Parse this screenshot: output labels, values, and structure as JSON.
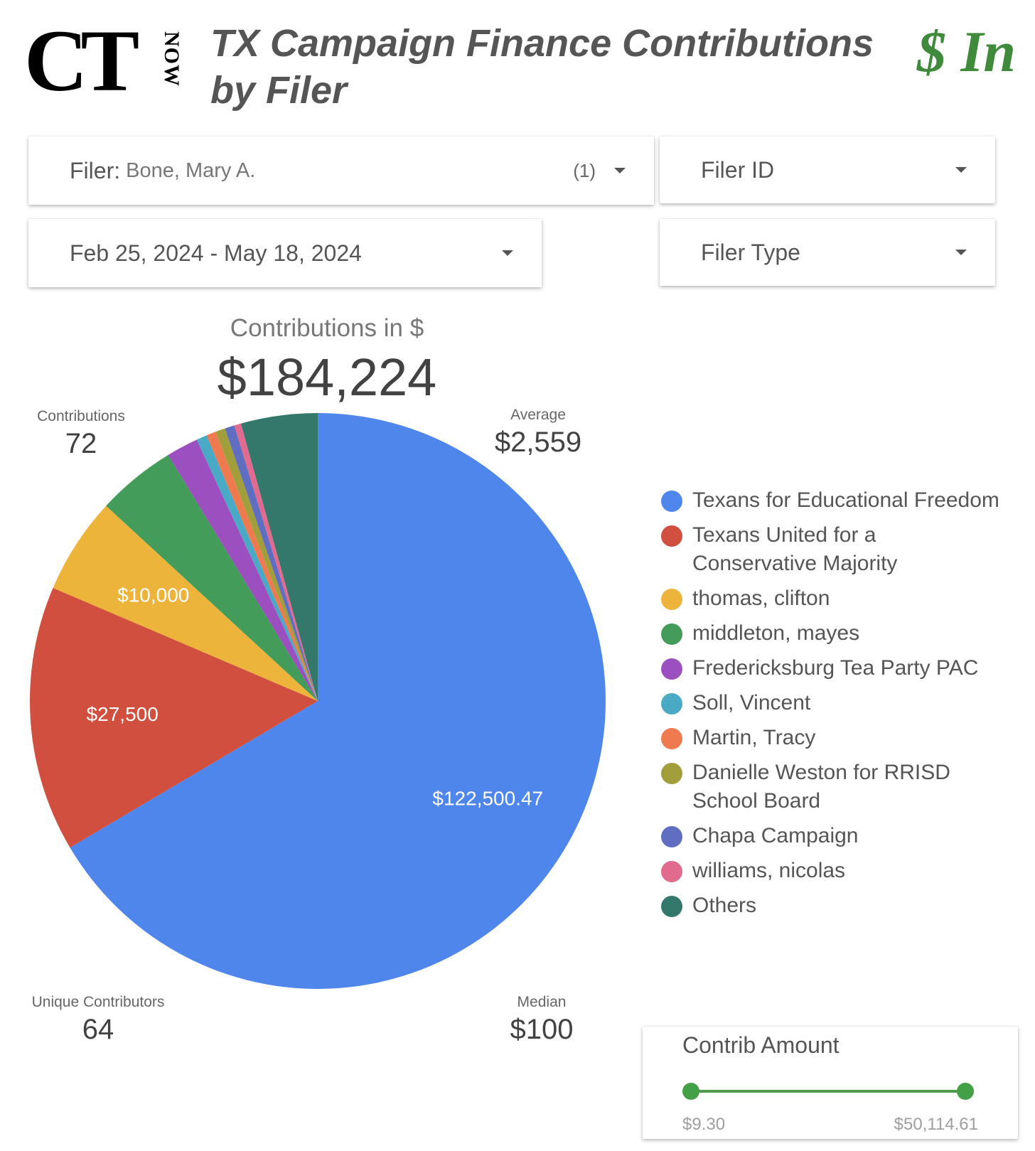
{
  "header": {
    "logo_text": "CT",
    "logo_subtext": "NOW",
    "title": "TX Campaign Finance Contributions by Filer",
    "badge": "$ In"
  },
  "filters": {
    "filer": {
      "label": "Filer",
      "separator": ":",
      "value": "Bone, Mary A.",
      "count": "(1)"
    },
    "filer_id": {
      "label": "Filer ID"
    },
    "date_range": {
      "value": "Feb 25, 2024 - May 18, 2024"
    },
    "filer_type": {
      "label": "Filer Type"
    }
  },
  "scorecards": {
    "total": {
      "label": "Contributions in $",
      "value": "$184,224"
    },
    "contributions": {
      "label": "Contributions",
      "value": "72"
    },
    "average": {
      "label": "Average",
      "value": "$2,559"
    },
    "unique_contributors": {
      "label": "Unique Contributors",
      "value": "64"
    },
    "median": {
      "label": "Median",
      "value": "$100"
    }
  },
  "chart_data": {
    "type": "pie",
    "title": "",
    "total": 184224,
    "slices": [
      {
        "name": "Texans for Educational Freedom",
        "value": 122500.47,
        "label": "$122,500.47",
        "color": "#4f86ec"
      },
      {
        "name": "Texans United for a Conservative Majority",
        "value": 27500,
        "label": "$27,500",
        "color": "#d14f3e"
      },
      {
        "name": "thomas, clifton",
        "value": 10000,
        "label": "$10,000",
        "color": "#edb43c"
      },
      {
        "name": "middleton, mayes",
        "value": 8200,
        "label": "",
        "color": "#439c59"
      },
      {
        "name": "Fredericksburg Tea Party PAC",
        "value": 3300,
        "label": "",
        "color": "#9c4fbf"
      },
      {
        "name": "Soll, Vincent",
        "value": 1100,
        "label": "",
        "color": "#4aa9c4"
      },
      {
        "name": "Martin, Tracy",
        "value": 1000,
        "label": "",
        "color": "#ef7a4f"
      },
      {
        "name": "Danielle Weston for RRISD School Board",
        "value": 1000,
        "label": "",
        "color": "#a29e3b"
      },
      {
        "name": "Chapa Campaign",
        "value": 1000,
        "label": "",
        "color": "#5f6ec0"
      },
      {
        "name": "williams, nicolas",
        "value": 700,
        "label": "",
        "color": "#e06b8e"
      },
      {
        "name": "Others",
        "value": 7923.53,
        "label": "",
        "color": "#34786b"
      }
    ],
    "legend_position": "right"
  },
  "slider": {
    "title": "Contrib Amount",
    "min_label": "$9.30",
    "max_label": "$50,114.61",
    "min": 9.3,
    "max": 50114.61,
    "selected_min": 9.3,
    "selected_max": 50114.61,
    "accent_color": "#43a047"
  }
}
